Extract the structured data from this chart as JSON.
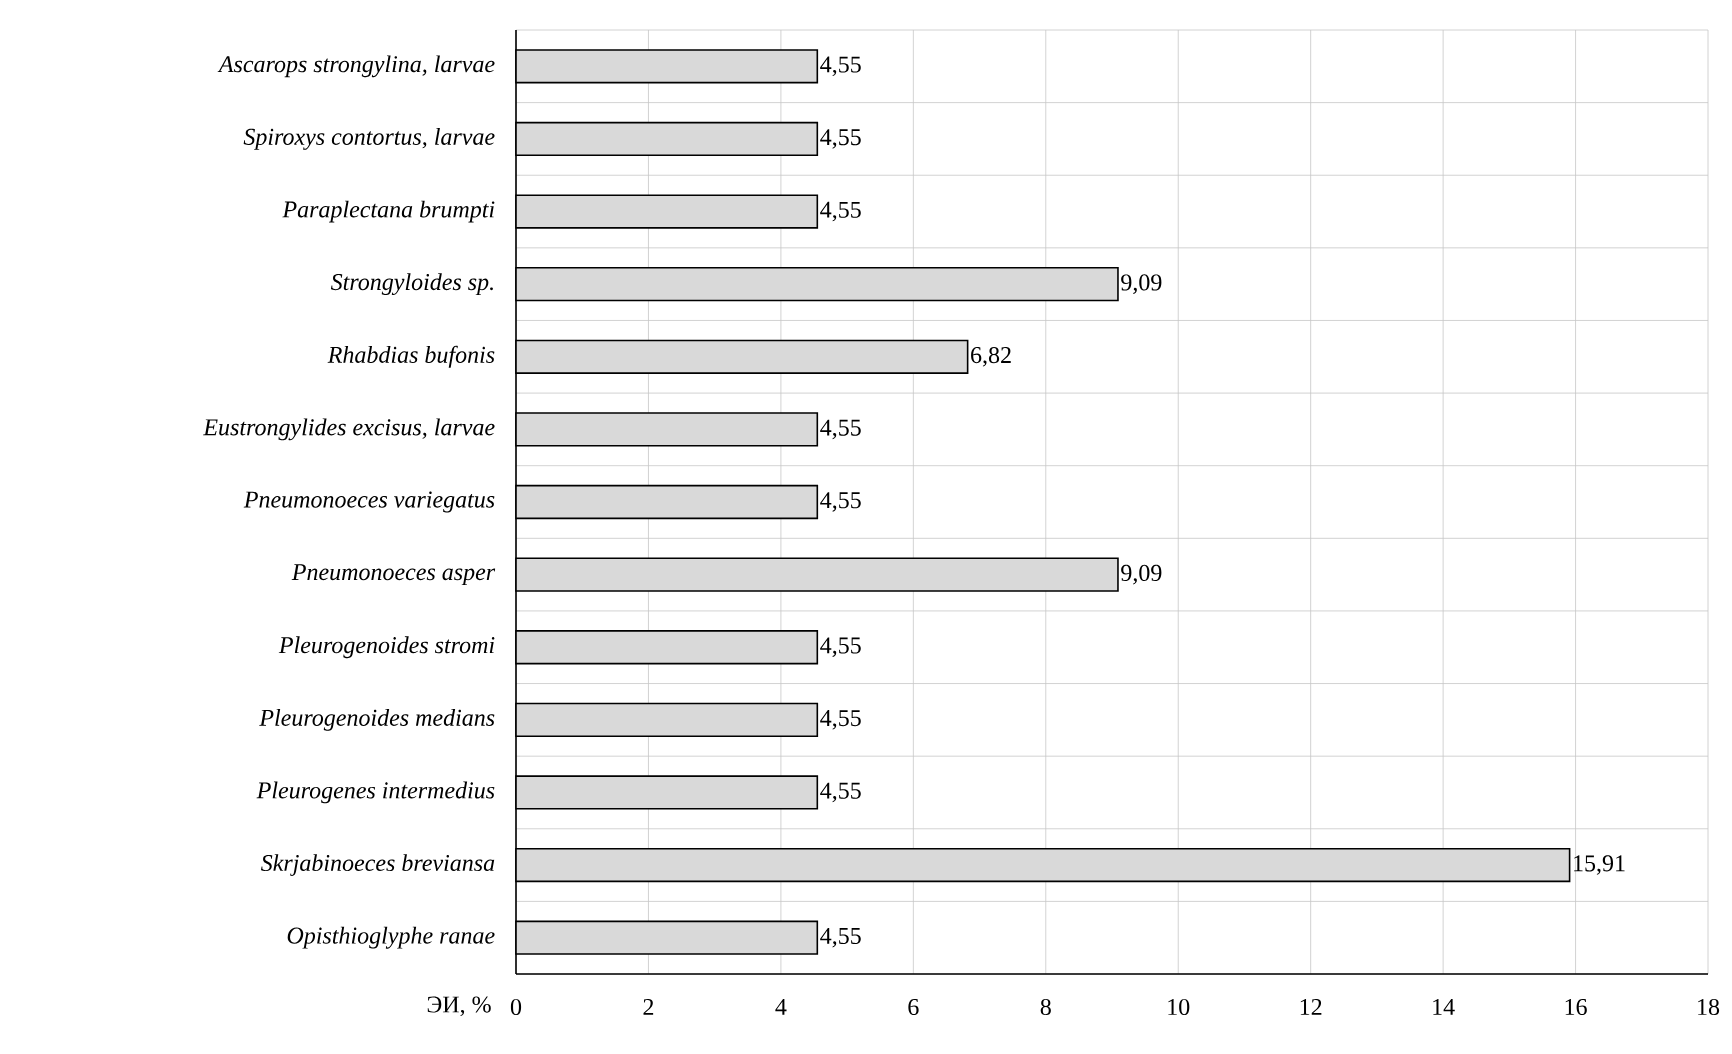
{
  "chart_data": {
    "type": "bar",
    "orientation": "horizontal",
    "xlabel": "ЭИ, %",
    "categories": [
      "Ascarops strongylina, larvae",
      "Spiroxys contortus, larvae",
      "Paraplectana brumpti",
      "Strongyloides sp.",
      "Rhabdias bufonis",
      "Eustrongylides excisus, larvae",
      "Pneumonoeces variegatus",
      "Pneumonoeces asper",
      "Pleurogenoides stromi",
      "Pleurogenoides medians",
      "Pleurogenes intermedius",
      "Skrjabinoeces breviansa",
      "Opisthioglyphe ranae"
    ],
    "values": [
      4.55,
      4.55,
      4.55,
      9.09,
      6.82,
      4.55,
      4.55,
      9.09,
      4.55,
      4.55,
      4.55,
      15.91,
      4.55
    ],
    "value_labels": [
      "4,55",
      "4,55",
      "4,55",
      "9,09",
      "6,82",
      "4,55",
      "4,55",
      "9,09",
      "4,55",
      "4,55",
      "4,55",
      "15,91",
      "4,55"
    ],
    "color": "#d9d9d9",
    "xlim": [
      0,
      18
    ],
    "xticks": [
      0,
      2,
      4,
      6,
      8,
      10,
      12,
      14,
      16,
      18
    ],
    "grid": true
  }
}
